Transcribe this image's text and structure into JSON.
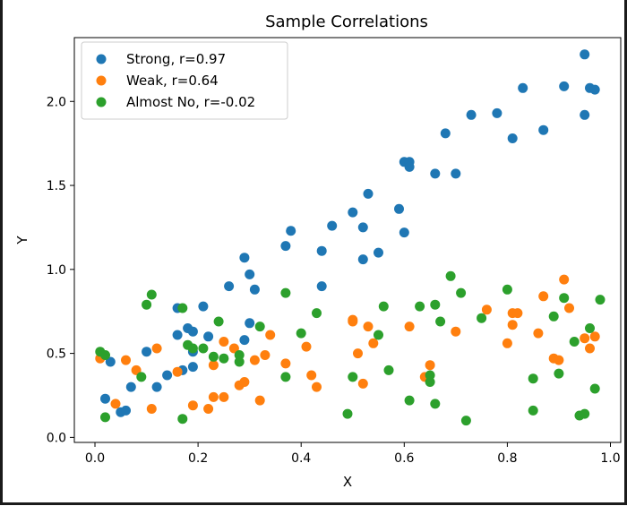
{
  "chart_data": {
    "type": "scatter",
    "title": "Sample Correlations",
    "xlabel": "X",
    "ylabel": "Y",
    "xlim": [
      -0.04,
      1.02
    ],
    "ylim": [
      -0.03,
      2.38
    ],
    "xticks": [
      0.0,
      0.2,
      0.4,
      0.6,
      0.8,
      1.0
    ],
    "yticks": [
      0.0,
      0.5,
      1.0,
      1.5,
      2.0
    ],
    "xtick_labels": [
      "0.0",
      "0.2",
      "0.4",
      "0.6",
      "0.8",
      "1.0"
    ],
    "ytick_labels": [
      "0.0",
      "0.5",
      "1.0",
      "1.5",
      "2.0"
    ],
    "grid": false,
    "legend_position": "top-left",
    "series": [
      {
        "name": "Strong, r=0.97",
        "color": "#1f77b4",
        "points": [
          [
            0.03,
            0.45
          ],
          [
            0.02,
            0.23
          ],
          [
            0.05,
            0.15
          ],
          [
            0.06,
            0.16
          ],
          [
            0.07,
            0.3
          ],
          [
            0.1,
            0.51
          ],
          [
            0.12,
            0.3
          ],
          [
            0.14,
            0.37
          ],
          [
            0.16,
            0.61
          ],
          [
            0.16,
            0.77
          ],
          [
            0.17,
            0.4
          ],
          [
            0.18,
            0.65
          ],
          [
            0.19,
            0.63
          ],
          [
            0.19,
            0.51
          ],
          [
            0.19,
            0.42
          ],
          [
            0.21,
            0.78
          ],
          [
            0.22,
            0.6
          ],
          [
            0.26,
            0.9
          ],
          [
            0.29,
            1.07
          ],
          [
            0.29,
            0.58
          ],
          [
            0.3,
            0.97
          ],
          [
            0.31,
            0.88
          ],
          [
            0.3,
            0.68
          ],
          [
            0.37,
            1.14
          ],
          [
            0.38,
            1.23
          ],
          [
            0.44,
            0.9
          ],
          [
            0.44,
            1.11
          ],
          [
            0.46,
            1.26
          ],
          [
            0.5,
            1.34
          ],
          [
            0.52,
            1.06
          ],
          [
            0.52,
            1.25
          ],
          [
            0.53,
            1.45
          ],
          [
            0.55,
            1.1
          ],
          [
            0.59,
            1.36
          ],
          [
            0.6,
            1.64
          ],
          [
            0.6,
            1.22
          ],
          [
            0.61,
            1.64
          ],
          [
            0.61,
            1.61
          ],
          [
            0.66,
            1.57
          ],
          [
            0.68,
            1.81
          ],
          [
            0.7,
            1.57
          ],
          [
            0.73,
            1.92
          ],
          [
            0.78,
            1.93
          ],
          [
            0.81,
            1.78
          ],
          [
            0.83,
            2.08
          ],
          [
            0.87,
            1.83
          ],
          [
            0.91,
            2.09
          ],
          [
            0.95,
            2.28
          ],
          [
            0.95,
            1.92
          ],
          [
            0.96,
            2.08
          ],
          [
            0.97,
            2.07
          ]
        ]
      },
      {
        "name": "Weak, r=0.64",
        "color": "#ff7f0e",
        "points": [
          [
            0.01,
            0.47
          ],
          [
            0.04,
            0.2
          ],
          [
            0.06,
            0.46
          ],
          [
            0.08,
            0.4
          ],
          [
            0.12,
            0.53
          ],
          [
            0.11,
            0.17
          ],
          [
            0.16,
            0.39
          ],
          [
            0.19,
            0.19
          ],
          [
            0.22,
            0.17
          ],
          [
            0.23,
            0.43
          ],
          [
            0.23,
            0.24
          ],
          [
            0.25,
            0.57
          ],
          [
            0.25,
            0.24
          ],
          [
            0.27,
            0.53
          ],
          [
            0.28,
            0.31
          ],
          [
            0.29,
            0.33
          ],
          [
            0.31,
            0.46
          ],
          [
            0.32,
            0.22
          ],
          [
            0.33,
            0.49
          ],
          [
            0.34,
            0.61
          ],
          [
            0.37,
            0.44
          ],
          [
            0.41,
            0.54
          ],
          [
            0.42,
            0.37
          ],
          [
            0.43,
            0.3
          ],
          [
            0.5,
            0.69
          ],
          [
            0.5,
            0.7
          ],
          [
            0.52,
            0.32
          ],
          [
            0.51,
            0.5
          ],
          [
            0.53,
            0.66
          ],
          [
            0.54,
            0.56
          ],
          [
            0.61,
            0.66
          ],
          [
            0.64,
            0.36
          ],
          [
            0.65,
            0.43
          ],
          [
            0.7,
            0.63
          ],
          [
            0.76,
            0.76
          ],
          [
            0.8,
            0.56
          ],
          [
            0.81,
            0.74
          ],
          [
            0.81,
            0.67
          ],
          [
            0.82,
            0.74
          ],
          [
            0.86,
            0.62
          ],
          [
            0.87,
            0.84
          ],
          [
            0.89,
            0.47
          ],
          [
            0.91,
            0.94
          ],
          [
            0.92,
            0.77
          ],
          [
            0.9,
            0.46
          ],
          [
            0.95,
            0.59
          ],
          [
            0.96,
            0.53
          ],
          [
            0.97,
            0.6
          ]
        ]
      },
      {
        "name": "Almost No, r=-0.02",
        "color": "#2ca02c",
        "points": [
          [
            0.01,
            0.51
          ],
          [
            0.02,
            0.49
          ],
          [
            0.02,
            0.12
          ],
          [
            0.09,
            0.36
          ],
          [
            0.1,
            0.79
          ],
          [
            0.11,
            0.85
          ],
          [
            0.17,
            0.11
          ],
          [
            0.17,
            0.77
          ],
          [
            0.18,
            0.55
          ],
          [
            0.19,
            0.53
          ],
          [
            0.21,
            0.53
          ],
          [
            0.23,
            0.48
          ],
          [
            0.24,
            0.69
          ],
          [
            0.25,
            0.47
          ],
          [
            0.28,
            0.45
          ],
          [
            0.28,
            0.49
          ],
          [
            0.32,
            0.66
          ],
          [
            0.37,
            0.86
          ],
          [
            0.37,
            0.36
          ],
          [
            0.4,
            0.62
          ],
          [
            0.43,
            0.74
          ],
          [
            0.49,
            0.14
          ],
          [
            0.5,
            0.36
          ],
          [
            0.55,
            0.61
          ],
          [
            0.56,
            0.78
          ],
          [
            0.57,
            0.4
          ],
          [
            0.61,
            0.22
          ],
          [
            0.63,
            0.78
          ],
          [
            0.65,
            0.37
          ],
          [
            0.65,
            0.33
          ],
          [
            0.66,
            0.2
          ],
          [
            0.66,
            0.79
          ],
          [
            0.67,
            0.69
          ],
          [
            0.69,
            0.96
          ],
          [
            0.71,
            0.86
          ],
          [
            0.72,
            0.1
          ],
          [
            0.75,
            0.71
          ],
          [
            0.8,
            0.88
          ],
          [
            0.85,
            0.35
          ],
          [
            0.85,
            0.16
          ],
          [
            0.89,
            0.72
          ],
          [
            0.9,
            0.38
          ],
          [
            0.91,
            0.83
          ],
          [
            0.93,
            0.57
          ],
          [
            0.94,
            0.13
          ],
          [
            0.95,
            0.14
          ],
          [
            0.96,
            0.65
          ],
          [
            0.97,
            0.29
          ],
          [
            0.98,
            0.82
          ]
        ]
      }
    ]
  }
}
